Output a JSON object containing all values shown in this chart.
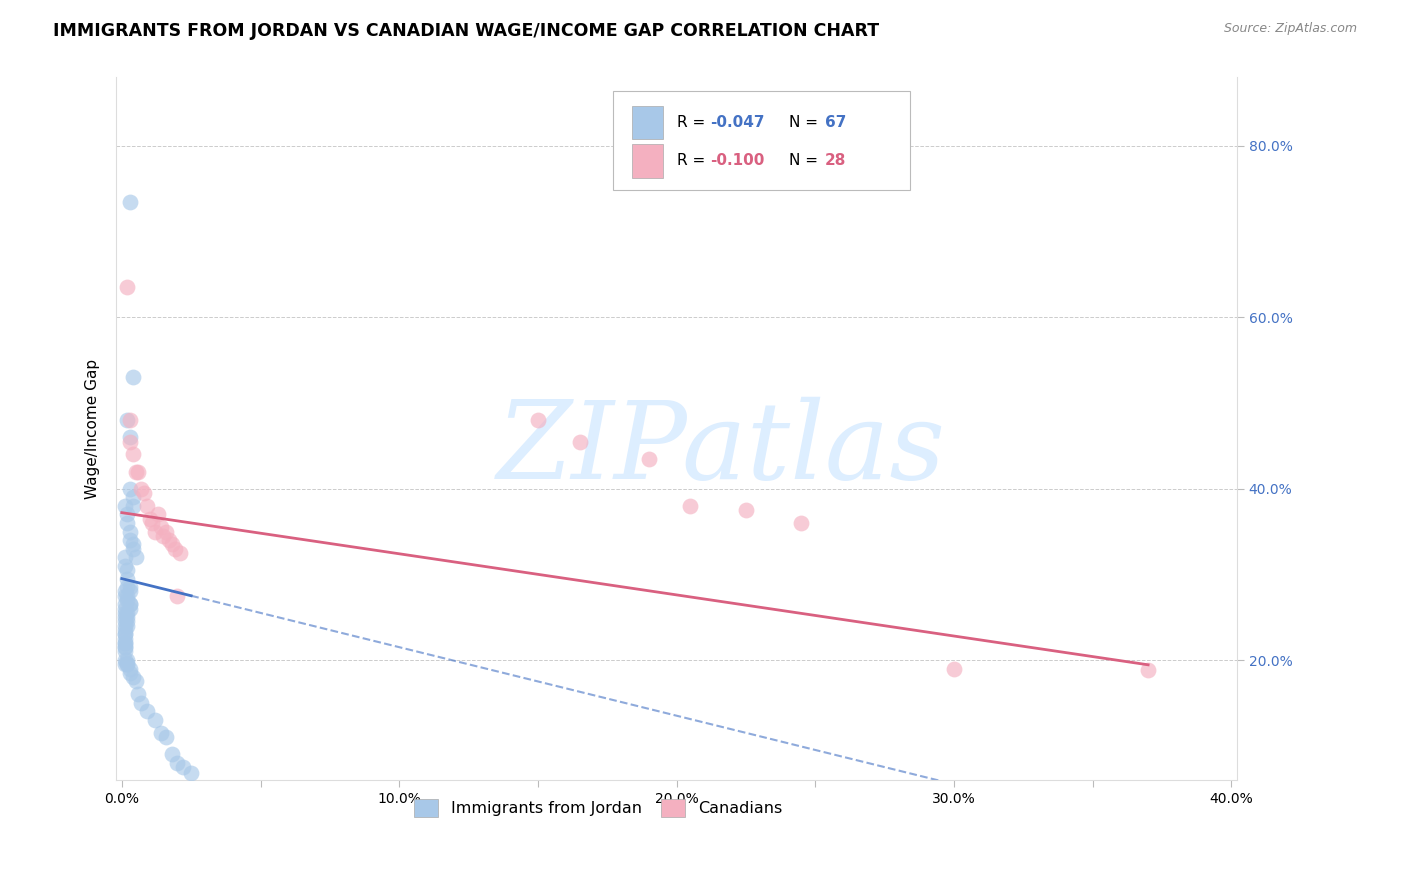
{
  "title": "IMMIGRANTS FROM JORDAN VS CANADIAN WAGE/INCOME GAP CORRELATION CHART",
  "source": "Source: ZipAtlas.com",
  "ylabel": "Wage/Income Gap",
  "xlim": [
    -0.002,
    0.402
  ],
  "ylim": [
    0.06,
    0.88
  ],
  "xticks": [
    0.0,
    0.05,
    0.1,
    0.15,
    0.2,
    0.25,
    0.3,
    0.35,
    0.4
  ],
  "xticklabels": [
    "0.0%",
    "",
    "10.0%",
    "",
    "20.0%",
    "",
    "30.0%",
    "",
    "40.0%"
  ],
  "yticks_right": [
    0.2,
    0.4,
    0.6,
    0.8
  ],
  "yticklabels_right": [
    "20.0%",
    "40.0%",
    "60.0%",
    "80.0%"
  ],
  "blue_scatter_x": [
    0.003,
    0.004,
    0.002,
    0.003,
    0.003,
    0.004,
    0.004,
    0.001,
    0.002,
    0.002,
    0.003,
    0.003,
    0.004,
    0.004,
    0.005,
    0.001,
    0.001,
    0.002,
    0.002,
    0.002,
    0.003,
    0.003,
    0.001,
    0.001,
    0.002,
    0.002,
    0.003,
    0.003,
    0.003,
    0.001,
    0.001,
    0.001,
    0.002,
    0.002,
    0.002,
    0.001,
    0.001,
    0.001,
    0.002,
    0.001,
    0.001,
    0.001,
    0.001,
    0.001,
    0.001,
    0.001,
    0.001,
    0.001,
    0.001,
    0.001,
    0.002,
    0.002,
    0.002,
    0.003,
    0.003,
    0.004,
    0.005,
    0.006,
    0.007,
    0.009,
    0.012,
    0.014,
    0.016,
    0.018,
    0.02,
    0.022,
    0.025
  ],
  "blue_scatter_y": [
    0.735,
    0.53,
    0.48,
    0.46,
    0.4,
    0.39,
    0.38,
    0.38,
    0.37,
    0.36,
    0.35,
    0.34,
    0.335,
    0.33,
    0.32,
    0.32,
    0.31,
    0.305,
    0.295,
    0.285,
    0.285,
    0.28,
    0.28,
    0.275,
    0.275,
    0.27,
    0.265,
    0.265,
    0.26,
    0.265,
    0.26,
    0.255,
    0.255,
    0.25,
    0.245,
    0.25,
    0.245,
    0.24,
    0.24,
    0.235,
    0.23,
    0.225,
    0.23,
    0.22,
    0.22,
    0.215,
    0.215,
    0.21,
    0.2,
    0.195,
    0.2,
    0.195,
    0.195,
    0.19,
    0.185,
    0.18,
    0.175,
    0.16,
    0.15,
    0.14,
    0.13,
    0.115,
    0.11,
    0.09,
    0.08,
    0.075,
    0.068
  ],
  "pink_scatter_x": [
    0.002,
    0.003,
    0.003,
    0.004,
    0.005,
    0.006,
    0.007,
    0.008,
    0.009,
    0.01,
    0.011,
    0.012,
    0.013,
    0.014,
    0.015,
    0.016,
    0.017,
    0.018,
    0.019,
    0.02,
    0.021,
    0.15,
    0.165,
    0.19,
    0.205,
    0.225,
    0.245,
    0.3,
    0.37
  ],
  "pink_scatter_y": [
    0.635,
    0.48,
    0.455,
    0.44,
    0.42,
    0.42,
    0.4,
    0.395,
    0.38,
    0.365,
    0.36,
    0.35,
    0.37,
    0.355,
    0.345,
    0.35,
    0.34,
    0.335,
    0.33,
    0.275,
    0.325,
    0.48,
    0.455,
    0.435,
    0.38,
    0.375,
    0.36,
    0.19,
    0.188
  ],
  "blue_line_intercept": 0.295,
  "blue_line_slope": -0.8,
  "pink_line_intercept": 0.372,
  "pink_line_slope": -0.48,
  "blue_line_color": "#4472c4",
  "pink_line_color": "#d96080",
  "blue_dot_color": "#a8c8e8",
  "pink_dot_color": "#f4b0c0",
  "blue_legend_color": "#a8c8e8",
  "pink_legend_color": "#f4b0c0",
  "dot_size": 130,
  "dot_alpha": 0.65,
  "grid_color": "#cccccc",
  "background_color": "#ffffff",
  "title_fontsize": 12.5,
  "axis_label_fontsize": 11,
  "tick_fontsize": 10,
  "right_tick_color": "#4472c4",
  "watermark_color": "#ddeeff",
  "watermark_text": "ZIPatlas"
}
